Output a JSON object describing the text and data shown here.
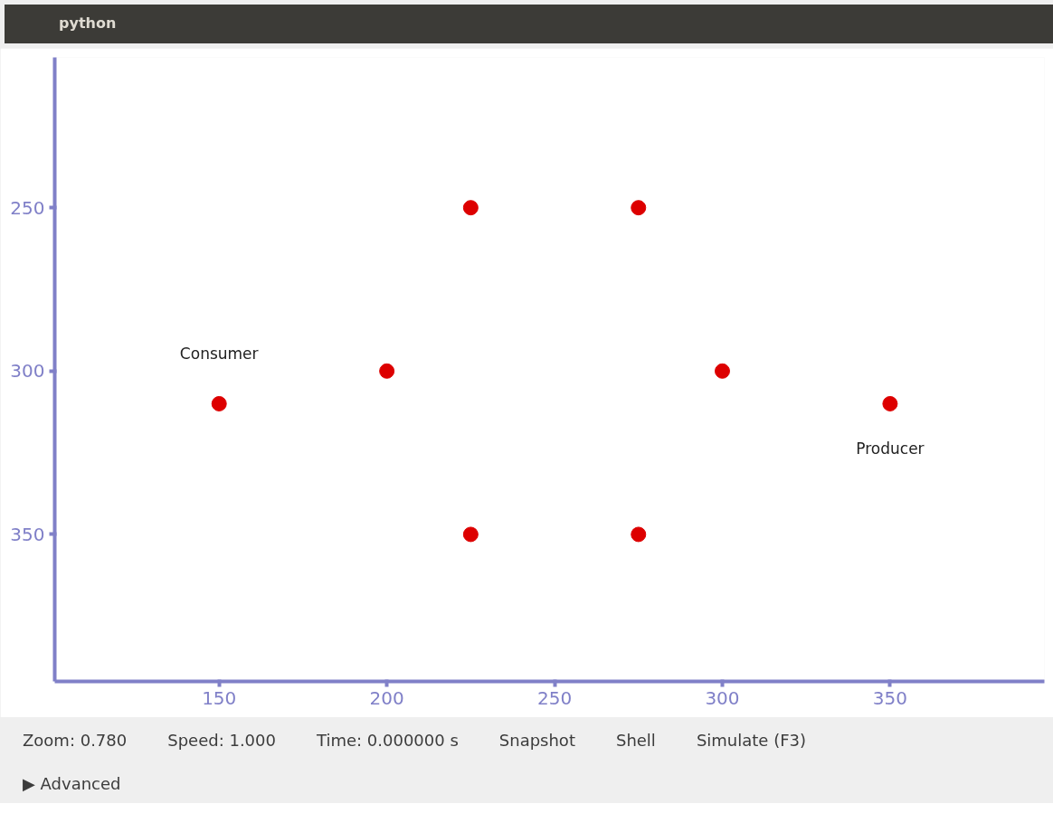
{
  "chart_data": {
    "type": "scatter",
    "title": "python",
    "x": [
      150,
      200,
      225,
      275,
      300,
      350,
      225,
      275
    ],
    "values": [
      310,
      300,
      250,
      250,
      300,
      310,
      350,
      350
    ],
    "color": "#dd0000",
    "marker": "circle",
    "grid": false,
    "xlim": [
      101,
      396
    ],
    "ylim": [
      395,
      204
    ],
    "xticks": [
      150,
      200,
      250,
      300,
      350
    ],
    "yticks": [
      250,
      300,
      350
    ],
    "annotations": [
      {
        "text": "Consumer",
        "x": 150,
        "y": 310
      },
      {
        "text": "Producer",
        "x": 350,
        "y": 310
      },
      "Zoom: 0.780",
      "Speed: 1.000",
      "Time: 0.000000 s",
      "Snapshot",
      "Shell",
      "Simulate (F3)",
      "▶ Advanced"
    ]
  }
}
